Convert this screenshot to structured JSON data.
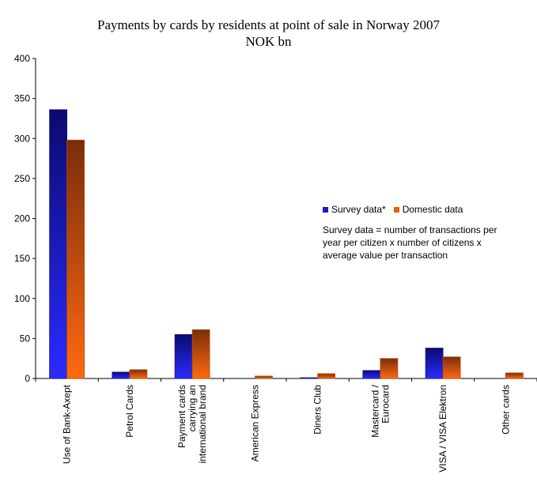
{
  "chart_data": {
    "type": "bar",
    "title": "Payments by cards by residents at point of sale in Norway 2007",
    "subtitle": "NOK bn",
    "categories": [
      [
        "Use of Bank-Axept"
      ],
      [
        "Petrol Cards"
      ],
      [
        "Payment cards",
        "carrying an",
        "international brand"
      ],
      [
        "American Express"
      ],
      [
        "Diners Club"
      ],
      [
        "Mastercard /",
        "Eurocard"
      ],
      [
        "VISA / VISA Elektron"
      ],
      [
        "Other cards"
      ]
    ],
    "series": [
      {
        "name": "Survey data*",
        "values": [
          336,
          8,
          55,
          0,
          1,
          10,
          38,
          0
        ],
        "color": "#1a1acc"
      },
      {
        "name": "Domestic data",
        "values": [
          298,
          11,
          61,
          3,
          6,
          25,
          27,
          7
        ],
        "color": "#e0620c"
      }
    ],
    "ylim": [
      0,
      400
    ],
    "yticks": [
      0,
      50,
      100,
      150,
      200,
      250,
      300,
      350,
      400
    ],
    "grid": false,
    "legend_position": "right-middle",
    "note": "Survey data = number of transactions per year per citizen x number of citizens x average value per transaction"
  }
}
